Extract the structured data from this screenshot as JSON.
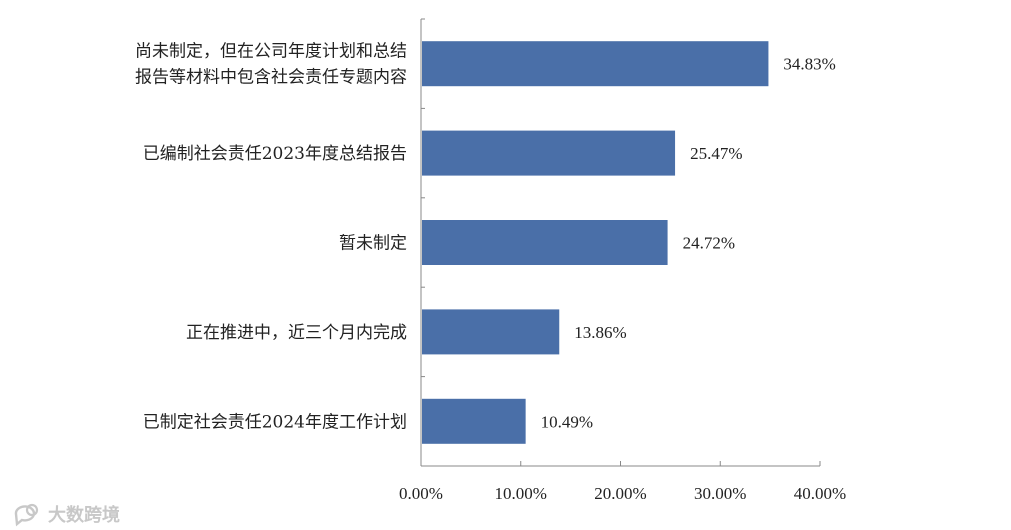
{
  "chart_data": {
    "type": "bar",
    "orientation": "horizontal",
    "categories": [
      [
        "尚未制定，但在公司年度计划和总结",
        "报告等材料中包含社会责任专题内容"
      ],
      [
        "已编制社会责任2023年度总结报告"
      ],
      [
        "暂未制定"
      ],
      [
        "正在推进中，近三个月内完成"
      ],
      [
        "已制定社会责任2024年度工作计划"
      ]
    ],
    "values": [
      34.83,
      25.47,
      24.72,
      13.86,
      10.49
    ],
    "value_labels": [
      "34.83%",
      "25.47%",
      "24.72%",
      "13.86%",
      "10.49%"
    ],
    "xlim": [
      0,
      40
    ],
    "x_ticks": [
      0,
      10,
      20,
      30,
      40
    ],
    "x_tick_labels": [
      "0.00%",
      "10.00%",
      "20.00%",
      "30.00%",
      "40.00%"
    ],
    "bar_color": "#4a6fa8",
    "grid": false,
    "title": "",
    "xlabel": "",
    "ylabel": ""
  },
  "watermark": {
    "icon": "chat-bubble-logo-icon",
    "text": "大数跨境"
  }
}
